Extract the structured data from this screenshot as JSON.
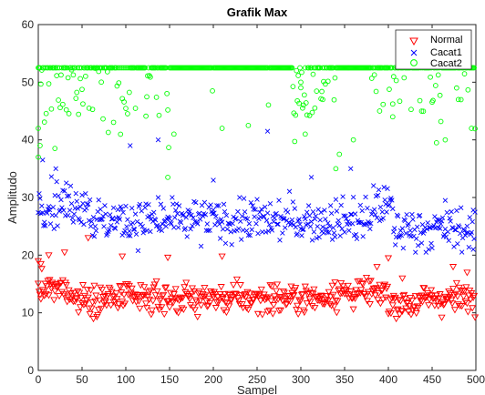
{
  "chart_data": {
    "type": "scatter",
    "title": "Grafik Max",
    "xlabel": "Sampel",
    "ylabel": "Amplitudo",
    "xlim": [
      0,
      500
    ],
    "ylim": [
      0,
      60
    ],
    "xticks": [
      "0",
      "50",
      "100",
      "150",
      "200",
      "250",
      "300",
      "350",
      "400",
      "450",
      "500"
    ],
    "yticks": [
      "0",
      "10",
      "20",
      "30",
      "40",
      "50",
      "60"
    ],
    "grid": false,
    "legend_position": "top-right",
    "series": [
      {
        "name": "Normal",
        "marker": "triangle-down",
        "color": "#ff0000",
        "n": 500,
        "base": 12.5,
        "spread": 1.8,
        "min": 9,
        "max": 23,
        "extra": [
          [
            0,
            19
          ],
          [
            3,
            18.5
          ],
          [
            12,
            20
          ],
          [
            30,
            20.5
          ],
          [
            57,
            23
          ],
          [
            96,
            19.8
          ],
          [
            148,
            19.6
          ],
          [
            210,
            19.8
          ],
          [
            400,
            19.5
          ],
          [
            416,
            16
          ],
          [
            474,
            18
          ],
          [
            490,
            17
          ]
        ]
      },
      {
        "name": "Cacat1",
        "marker": "x",
        "color": "#0000ff",
        "n": 500,
        "base": 26,
        "spread": 2.6,
        "min": 20.5,
        "max": 41.5,
        "extra": [
          [
            5,
            36.5
          ],
          [
            105,
            39
          ],
          [
            137,
            40
          ],
          [
            262,
            41.5
          ],
          [
            200,
            33
          ],
          [
            312,
            33.5
          ],
          [
            357,
            35
          ],
          [
            20,
            35
          ],
          [
            465,
            29.5
          ],
          [
            497,
            21
          ]
        ]
      },
      {
        "name": "Cacat2",
        "marker": "circle",
        "color": "#00ff00",
        "n": 500,
        "base": 52.5,
        "spread": 0,
        "min": 33,
        "max": 52.5,
        "extra": [
          [
            0,
            37
          ],
          [
            0,
            42
          ],
          [
            2,
            39
          ],
          [
            20,
            52.5
          ],
          [
            148,
            33.5
          ],
          [
            155,
            41
          ],
          [
            210,
            42
          ],
          [
            240,
            42.5
          ],
          [
            305,
            41
          ],
          [
            340,
            35
          ],
          [
            344,
            37.5
          ],
          [
            360,
            40
          ],
          [
            405,
            44
          ],
          [
            455,
            39.5
          ],
          [
            465,
            40
          ],
          [
            495,
            42
          ],
          [
            300,
            50
          ],
          [
            325,
            47
          ],
          [
            390,
            45
          ],
          [
            480,
            47
          ]
        ]
      }
    ]
  }
}
